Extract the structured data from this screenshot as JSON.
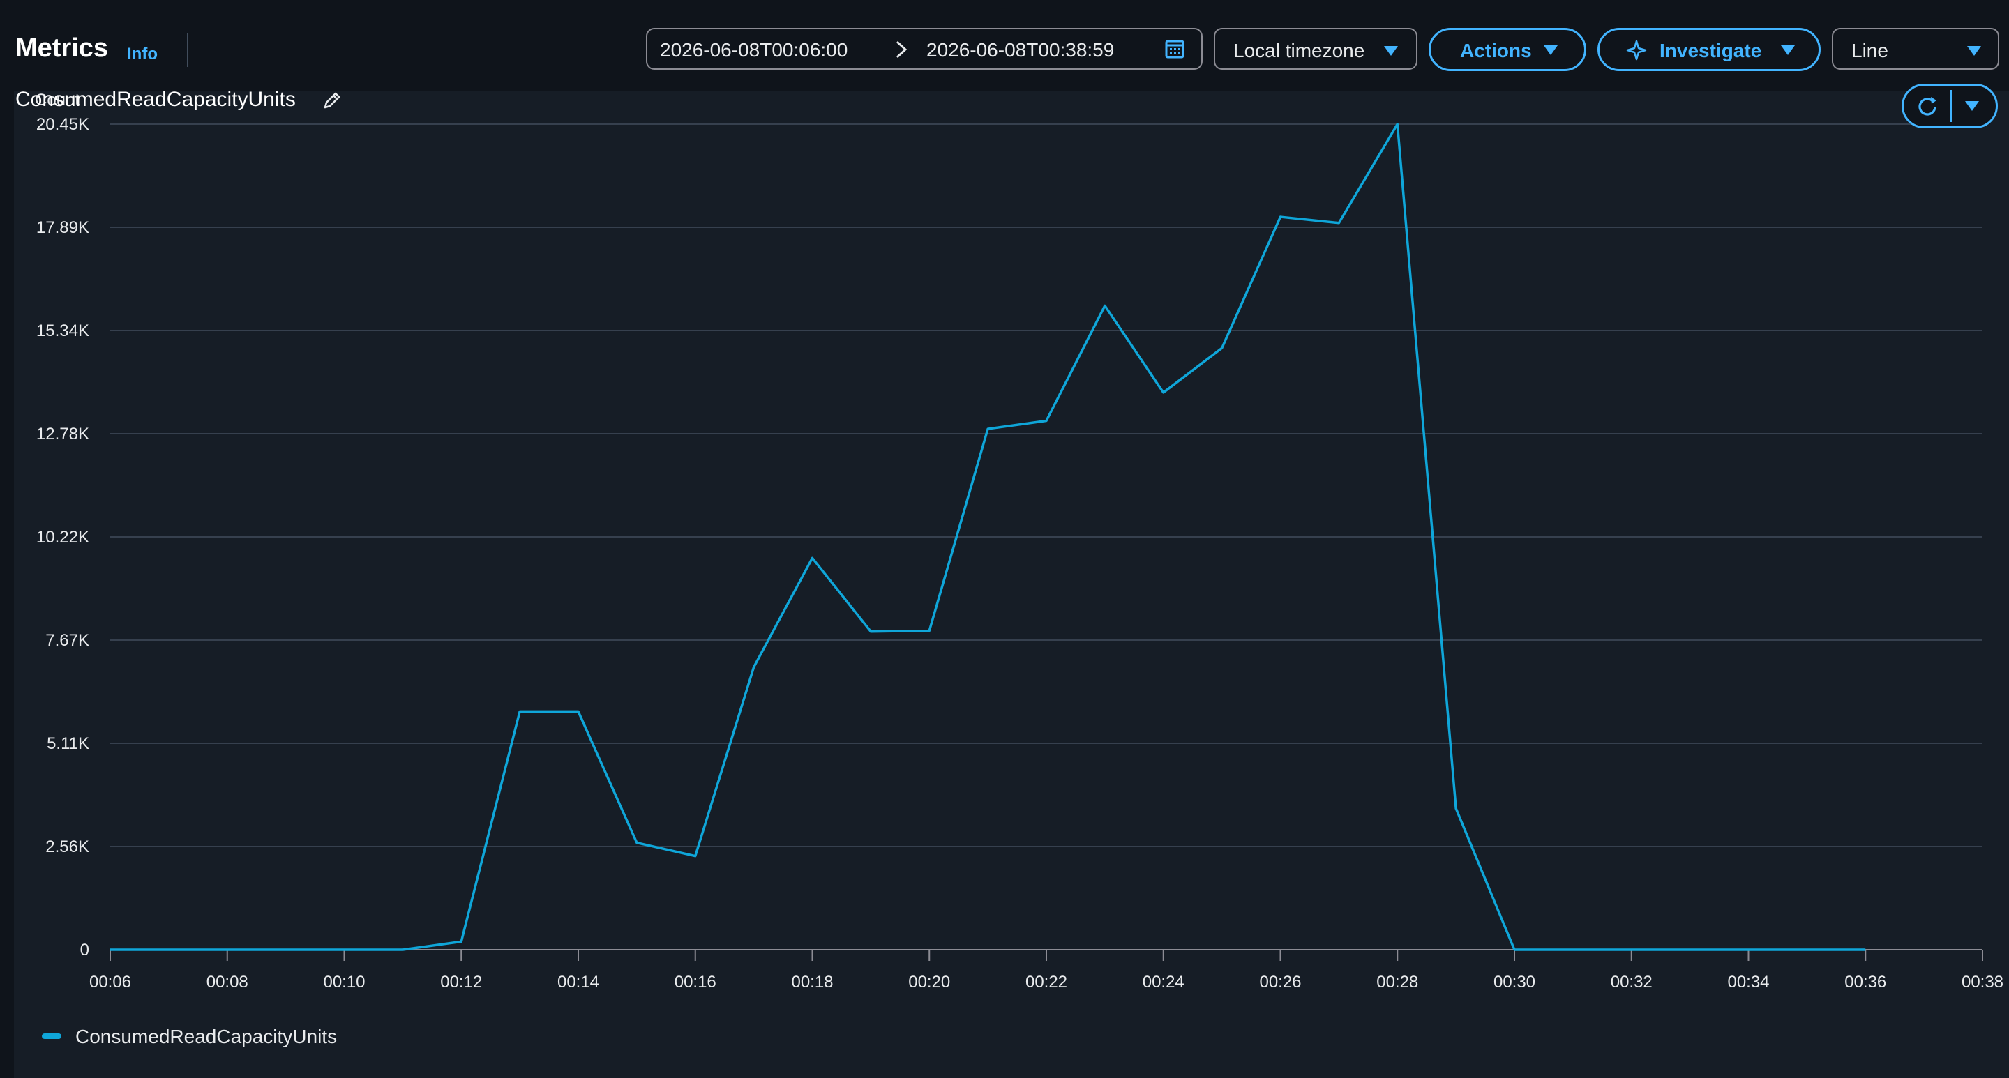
{
  "header": {
    "title": "Metrics",
    "info_link": "Info",
    "time_range": {
      "start": "2026-06-08T00:06:00",
      "end": "2026-06-08T00:38:59"
    },
    "timezone_select": "Local timezone",
    "actions_button": "Actions",
    "investigate_button": "Investigate",
    "chart_type_select": "Line"
  },
  "graph": {
    "title": "ConsumedReadCapacityUnits",
    "unit": "Count"
  },
  "colors": {
    "accent": "#42b4ff",
    "series": "#0fa6d9",
    "background": "#161d26"
  },
  "icons": [
    "info-link",
    "chevron-right-icon",
    "calendar-icon",
    "caret-down-icon",
    "sparkle-icon",
    "edit-icon",
    "refresh-icon"
  ],
  "chart_data": {
    "type": "line",
    "title": "ConsumedReadCapacityUnits",
    "ylabel": "Count",
    "xlabel": "",
    "x": [
      "00:06",
      "00:07",
      "00:08",
      "00:09",
      "00:10",
      "00:11",
      "00:12",
      "00:13",
      "00:14",
      "00:15",
      "00:16",
      "00:17",
      "00:18",
      "00:19",
      "00:20",
      "00:21",
      "00:22",
      "00:23",
      "00:24",
      "00:25",
      "00:26",
      "00:27",
      "00:28",
      "00:29",
      "00:30",
      "00:31",
      "00:32",
      "00:33",
      "00:34",
      "00:35",
      "00:36"
    ],
    "x_ticks": [
      "00:06",
      "00:08",
      "00:10",
      "00:12",
      "00:14",
      "00:16",
      "00:18",
      "00:20",
      "00:22",
      "00:24",
      "00:26",
      "00:28",
      "00:30",
      "00:32",
      "00:34",
      "00:36",
      "00:38"
    ],
    "y_ticks": [
      "0",
      "2.56K",
      "5.11K",
      "7.67K",
      "10.22K",
      "12.78K",
      "15.34K",
      "17.89K",
      "20.45K"
    ],
    "y_tick_values": [
      0,
      2556,
      5112,
      7668,
      10224,
      12780,
      15336,
      17892,
      20448
    ],
    "ylim": [
      0,
      20448
    ],
    "xlim": [
      "00:06",
      "00:38"
    ],
    "grid": true,
    "legend_position": "bottom-left",
    "series": [
      {
        "name": "ConsumedReadCapacityUnits",
        "values": [
          0,
          0,
          0,
          0,
          0,
          0,
          200,
          5900,
          5900,
          2650,
          2320,
          7000,
          9700,
          7880,
          7900,
          12900,
          13100,
          15950,
          13800,
          14900,
          18150,
          18000,
          20448,
          3500,
          0,
          0,
          0,
          0,
          0,
          0,
          0
        ]
      }
    ]
  }
}
